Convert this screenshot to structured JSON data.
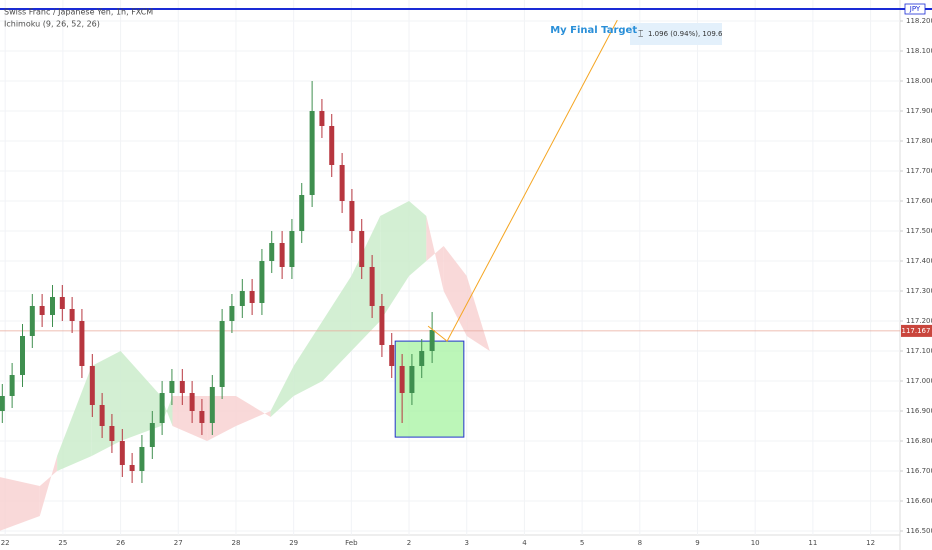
{
  "chart_data": {
    "type": "candlestick",
    "title": "Swiss Franc / Japanese Yen, 1h, FXCM",
    "subtitle": "Ichimoku (9, 26, 52, 26)",
    "currency": "JPY",
    "xlim": [
      -0.09,
      15.51
    ],
    "ylim": [
      116.5,
      118.27
    ],
    "xticks": [
      {
        "value": 0,
        "label": "22"
      },
      {
        "value": 1,
        "label": "25"
      },
      {
        "value": 2,
        "label": "26"
      },
      {
        "value": 3,
        "label": "27"
      },
      {
        "value": 4,
        "label": "28"
      },
      {
        "value": 5,
        "label": "29"
      },
      {
        "value": 6,
        "label": "Feb"
      },
      {
        "value": 7,
        "label": "2"
      },
      {
        "value": 8,
        "label": "3"
      },
      {
        "value": 9,
        "label": "4"
      },
      {
        "value": 10,
        "label": "5"
      },
      {
        "value": 11,
        "label": "8"
      },
      {
        "value": 12,
        "label": "9"
      },
      {
        "value": 13,
        "label": "10"
      },
      {
        "value": 14,
        "label": "11"
      },
      {
        "value": 15,
        "label": "12"
      }
    ],
    "yticks": [
      {
        "value": 116.5,
        "label": "116.500"
      },
      {
        "value": 116.6,
        "label": "116.600"
      },
      {
        "value": 116.7,
        "label": "116.700"
      },
      {
        "value": 116.8,
        "label": "116.800"
      },
      {
        "value": 116.9,
        "label": "116.900"
      },
      {
        "value": 117.0,
        "label": "117.000"
      },
      {
        "value": 117.1,
        "label": "117.100"
      },
      {
        "value": 117.2,
        "label": "117.200"
      },
      {
        "value": 117.3,
        "label": "117.300"
      },
      {
        "value": 117.4,
        "label": "117.400"
      },
      {
        "value": 117.5,
        "label": "117.500"
      },
      {
        "value": 117.6,
        "label": "117.600"
      },
      {
        "value": 117.7,
        "label": "117.700"
      },
      {
        "value": 117.8,
        "label": "117.800"
      },
      {
        "value": 117.9,
        "label": "117.900"
      },
      {
        "value": 118.0,
        "label": "118.000"
      },
      {
        "value": 118.1,
        "label": "118.100"
      },
      {
        "value": 118.2,
        "label": "118.200"
      }
    ],
    "grid": true,
    "up_color": "#3f8f4f",
    "down_color": "#b7363f",
    "x": [
      -0.05,
      0.12,
      0.3,
      0.47,
      0.64,
      0.82,
      0.99,
      1.16,
      1.33,
      1.51,
      1.68,
      1.85,
      2.03,
      2.2,
      2.37,
      2.55,
      2.72,
      2.89,
      3.07,
      3.24,
      3.41,
      3.59,
      3.76,
      3.93,
      4.11,
      4.28,
      4.45,
      4.62,
      4.8,
      4.97,
      5.14,
      5.32,
      5.49,
      5.66,
      5.84,
      6.01,
      6.18,
      6.36,
      6.53,
      6.7,
      6.88,
      7.05,
      7.22,
      7.4
    ],
    "open": [
      116.9,
      116.95,
      117.02,
      117.15,
      117.25,
      117.22,
      117.28,
      117.24,
      117.2,
      117.05,
      116.92,
      116.85,
      116.8,
      116.72,
      116.7,
      116.78,
      116.86,
      116.96,
      117.0,
      116.96,
      116.9,
      116.86,
      116.98,
      117.2,
      117.25,
      117.3,
      117.26,
      117.4,
      117.46,
      117.38,
      117.5,
      117.62,
      117.9,
      117.85,
      117.72,
      117.6,
      117.5,
      117.38,
      117.25,
      117.12,
      117.05,
      116.96,
      117.05,
      117.1
    ],
    "high": [
      116.99,
      117.06,
      117.19,
      117.29,
      117.29,
      117.32,
      117.32,
      117.28,
      117.24,
      117.09,
      116.96,
      116.89,
      116.84,
      116.76,
      116.82,
      116.9,
      117.0,
      117.04,
      117.04,
      117.0,
      116.94,
      117.02,
      117.24,
      117.29,
      117.34,
      117.34,
      117.44,
      117.5,
      117.5,
      117.54,
      117.66,
      118.0,
      117.94,
      117.89,
      117.76,
      117.64,
      117.54,
      117.42,
      117.29,
      117.16,
      117.09,
      117.09,
      117.14,
      117.23
    ],
    "low": [
      116.86,
      116.91,
      116.98,
      117.11,
      117.18,
      117.18,
      117.2,
      117.16,
      117.01,
      116.88,
      116.81,
      116.76,
      116.68,
      116.66,
      116.66,
      116.74,
      116.82,
      116.92,
      116.92,
      116.86,
      116.82,
      116.82,
      116.94,
      117.16,
      117.21,
      117.22,
      117.22,
      117.36,
      117.34,
      117.34,
      117.46,
      117.58,
      117.81,
      117.68,
      117.56,
      117.46,
      117.34,
      117.21,
      117.08,
      117.01,
      116.86,
      116.92,
      117.01,
      117.06
    ],
    "close": [
      116.95,
      117.02,
      117.15,
      117.25,
      117.22,
      117.28,
      117.24,
      117.2,
      117.05,
      116.92,
      116.85,
      116.8,
      116.72,
      116.7,
      116.78,
      116.86,
      116.96,
      117.0,
      116.96,
      116.9,
      116.86,
      116.98,
      117.2,
      117.25,
      117.3,
      117.26,
      117.4,
      117.46,
      117.38,
      117.5,
      117.62,
      117.9,
      117.85,
      117.72,
      117.6,
      117.5,
      117.38,
      117.25,
      117.12,
      117.05,
      116.96,
      117.05,
      117.1,
      117.17
    ],
    "cloud": {
      "x": [
        -0.1,
        0.6,
        0.9,
        1.5,
        2.0,
        2.7,
        2.9,
        3.5,
        4.0,
        4.6,
        5.0,
        5.5,
        6.0,
        6.5,
        7.0,
        7.3,
        7.6,
        8.0,
        8.4
      ],
      "span_a": [
        116.5,
        116.55,
        116.75,
        117.05,
        117.1,
        116.95,
        116.85,
        116.8,
        116.85,
        116.9,
        117.05,
        117.2,
        117.35,
        117.55,
        117.6,
        117.55,
        117.3,
        117.15,
        117.1
      ],
      "span_b": [
        116.68,
        116.65,
        116.7,
        116.75,
        116.8,
        116.85,
        116.95,
        116.95,
        116.95,
        116.88,
        116.95,
        117.0,
        117.1,
        117.2,
        117.35,
        117.4,
        117.45,
        117.35,
        117.1
      ],
      "up_color": "#c8ebc8",
      "down_color": "#f8d0d0"
    },
    "current_price": 117.167,
    "current_price_label": "117.167",
    "level_line": 118.24,
    "box": {
      "x": [
        6.76,
        7.95
      ],
      "y": [
        116.813,
        117.133
      ]
    },
    "path": {
      "x": [
        7.33,
        7.66,
        10.61
      ],
      "y": [
        117.183,
        117.133,
        118.203
      ]
    },
    "annotation": "My Final Target",
    "annotation_x": 10.2,
    "annotation_y": 118.17,
    "measure_label": "1.096 (0.94%), 109.6"
  }
}
